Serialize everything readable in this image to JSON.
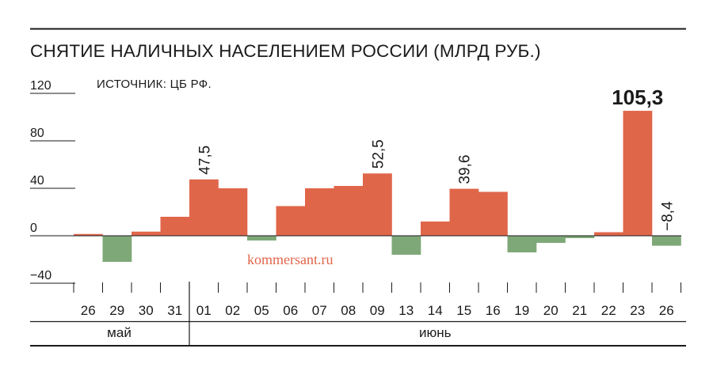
{
  "chart_data": {
    "type": "bar",
    "title": "СНЯТИЕ НАЛИЧНЫХ НАСЕЛЕНИЕМ РОССИИ (МЛРД РУБ.)",
    "source": "ИСТОЧНИК: ЦБ РФ.",
    "watermark": "kommersant.ru",
    "categories": [
      "26",
      "29",
      "30",
      "31",
      "01",
      "02",
      "05",
      "06",
      "07",
      "08",
      "09",
      "13",
      "14",
      "15",
      "16",
      "19",
      "20",
      "21",
      "22",
      "23",
      "26"
    ],
    "months": [
      {
        "label": "май",
        "span": [
          0,
          3
        ]
      },
      {
        "label": "июнь",
        "span": [
          4,
          20
        ]
      }
    ],
    "values": [
      1.5,
      -22,
      3.5,
      16,
      47.5,
      40,
      -4,
      25,
      40,
      42,
      52.5,
      -16,
      12,
      39.6,
      37,
      -14,
      -6,
      -2,
      3,
      105.3,
      -8.4
    ],
    "data_labels": [
      {
        "index": 4,
        "text": "47,5"
      },
      {
        "index": 10,
        "text": "52,5"
      },
      {
        "index": 13,
        "text": "39,6"
      },
      {
        "index": 19,
        "text": "105,3",
        "emphasis": true
      },
      {
        "index": 20,
        "text": "−8,4"
      }
    ],
    "yticks": [
      120,
      80,
      40,
      0,
      -40
    ],
    "ytick_labels": [
      "120",
      "80",
      "40",
      "0",
      "−40"
    ],
    "ylim": [
      -40,
      120
    ],
    "colors": {
      "positive": "#e0664a",
      "negative": "#7fa878",
      "text": "#1a1a1a"
    }
  }
}
